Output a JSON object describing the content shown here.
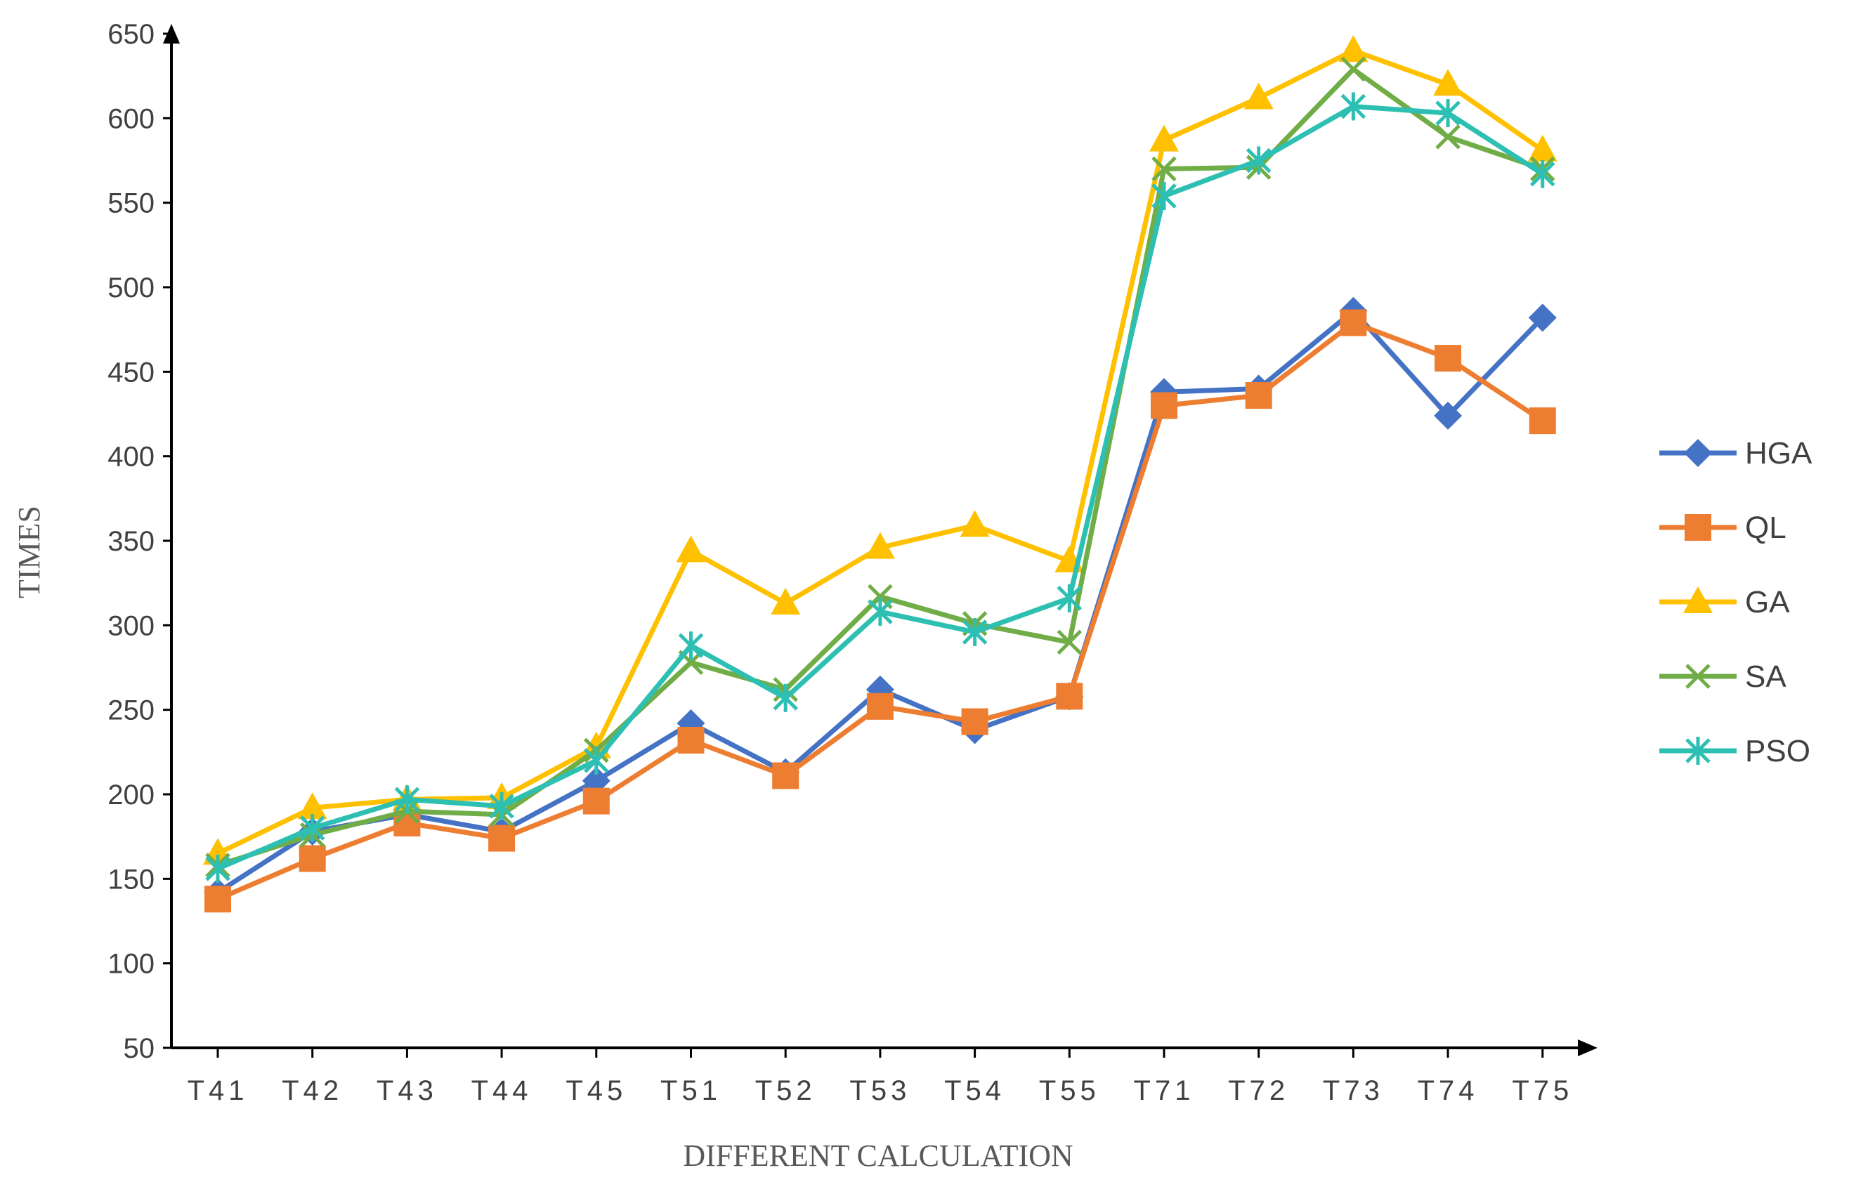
{
  "chart_data": {
    "type": "line",
    "title": "",
    "xlabel": "DIFFERENT CALCULATION",
    "ylabel": "TIMES",
    "ylim": [
      50,
      650
    ],
    "yticks": [
      50,
      100,
      150,
      200,
      250,
      300,
      350,
      400,
      450,
      500,
      550,
      600,
      650
    ],
    "categories": [
      "T41",
      "T42",
      "T43",
      "T44",
      "T45",
      "T51",
      "T52",
      "T53",
      "T54",
      "T55",
      "T71",
      "T72",
      "T73",
      "T74",
      "T75"
    ],
    "category_labels": [
      "T41",
      "T42",
      "T43",
      "T44",
      "T45",
      "T51",
      "T52",
      "T53",
      "T54",
      "T55",
      "T71",
      "T72",
      "T73",
      "T74",
      "T75"
    ],
    "grid": false,
    "legend_position": "right",
    "series": [
      {
        "name": "HGA",
        "color": "#4472C4",
        "marker": "diamond",
        "values": [
          142,
          178,
          188,
          178,
          208,
          242,
          213,
          262,
          238,
          258,
          438,
          440,
          486,
          424,
          482
        ]
      },
      {
        "name": "QL",
        "color": "#ED7D31",
        "marker": "square",
        "values": [
          138,
          162,
          183,
          174,
          196,
          232,
          211,
          252,
          243,
          258,
          430,
          436,
          479,
          458,
          421
        ]
      },
      {
        "name": "GA",
        "color": "#FFC000",
        "marker": "triangle",
        "values": [
          165,
          192,
          197,
          198,
          228,
          344,
          313,
          346,
          359,
          338,
          587,
          612,
          640,
          620,
          581
        ]
      },
      {
        "name": "SA",
        "color": "#70AD47",
        "marker": "x",
        "values": [
          158,
          176,
          190,
          188,
          226,
          278,
          262,
          317,
          301,
          290,
          570,
          571,
          629,
          589,
          570
        ]
      },
      {
        "name": "PSO",
        "color": "#2EBFB3",
        "marker": "star",
        "values": [
          156,
          180,
          197,
          193,
          220,
          288,
          257,
          308,
          296,
          316,
          554,
          575,
          607,
          603,
          567
        ]
      }
    ]
  }
}
